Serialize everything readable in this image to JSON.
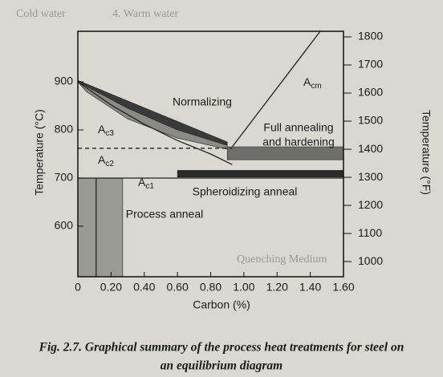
{
  "chart_data": {
    "type": "region",
    "x_label": "Carbon (%)",
    "y_label": "Temperature (°C)",
    "y2_label": "Temperature (°F)",
    "xlim": [
      0,
      1.6
    ],
    "ylim": [
      495,
      1005
    ],
    "y2lim": [
      946,
      1820
    ],
    "xticks": [
      0,
      {
        "value": 0.2,
        "label": "0.20"
      },
      {
        "value": 0.4,
        "label": "0.40"
      },
      {
        "value": 0.6,
        "label": "0.60"
      },
      {
        "value": 0.8,
        "label": "0.80"
      },
      {
        "value": 1.0,
        "label": "1.00"
      },
      {
        "value": 1.2,
        "label": "1.20"
      },
      {
        "value": 1.4,
        "label": "1.40"
      },
      {
        "value": 1.6,
        "label": "1.60"
      }
    ],
    "yticks": [
      600,
      700,
      800,
      900
    ],
    "y2ticks": [
      1000,
      1100,
      1200,
      1300,
      1400,
      1500,
      1600,
      1700,
      1800
    ],
    "regions": [
      {
        "label": "Normalizing",
        "color": "#3a3a3a",
        "x": [
          0,
          0.9,
          0.9,
          0.6,
          0.3,
          0.05
        ],
        "values": [
          903,
          775,
          768,
          800,
          845,
          890
        ]
      },
      {
        "color": "#8a8a86",
        "x": [
          0,
          0.3,
          0.6,
          0.9,
          0.9,
          0.6,
          0.3,
          0.05
        ],
        "values": [
          900,
          845,
          800,
          768,
          760,
          783,
          823,
          880
        ]
      },
      {
        "label": [
          "Full annealing",
          "and hardening"
        ],
        "color": "#6e6e6a",
        "x": [
          0.9,
          1.6,
          1.6,
          0.9
        ],
        "values": [
          765,
          765,
          738,
          738
        ]
      },
      {
        "label": "Spheroidizing anneal",
        "color": "#2a2a2a",
        "x": [
          0.6,
          1.6,
          1.6,
          0.6
        ],
        "values": [
          716,
          716,
          702,
          702
        ]
      },
      {
        "label": "Process anneal",
        "color": "#9a9a94",
        "x": [
          0,
          0.27,
          0.27,
          0
        ],
        "values": [
          700,
          700,
          495,
          495
        ]
      }
    ],
    "lines": [
      {
        "color": "#222",
        "x": [
          0,
          0.2,
          0.4,
          0.6,
          0.8,
          0.93
        ],
        "values": [
          900,
          852,
          812,
          778,
          750,
          728
        ]
      },
      {
        "color": "#222",
        "x": [
          0.93,
          1.46
        ],
        "values": [
          765,
          1005
        ]
      },
      {
        "color": "#222",
        "x": [
          0,
          1.6
        ],
        "values": [
          700,
          700
        ]
      },
      {
        "color": "#222",
        "dashed": true,
        "x": [
          0,
          0.93
        ],
        "values": [
          762,
          762
        ]
      },
      {
        "color": "#222",
        "x": [
          0.11,
          0.11
        ],
        "values": [
          700,
          495
        ]
      }
    ],
    "annotations": [
      {
        "text": "A",
        "subscript": "cm"
      },
      {
        "text": "A",
        "subscript": "c3"
      },
      {
        "text": "A",
        "subscript": "c2"
      },
      {
        "text": "A",
        "subscript": "c1"
      }
    ],
    "caption": [
      "Fig. 2.7. Graphical summary of the process heat treatments for steel on",
      "an equilibrium diagram"
    ],
    "background_text": [
      "Cold water",
      "4. Warm water",
      "Quenching Medium"
    ]
  }
}
